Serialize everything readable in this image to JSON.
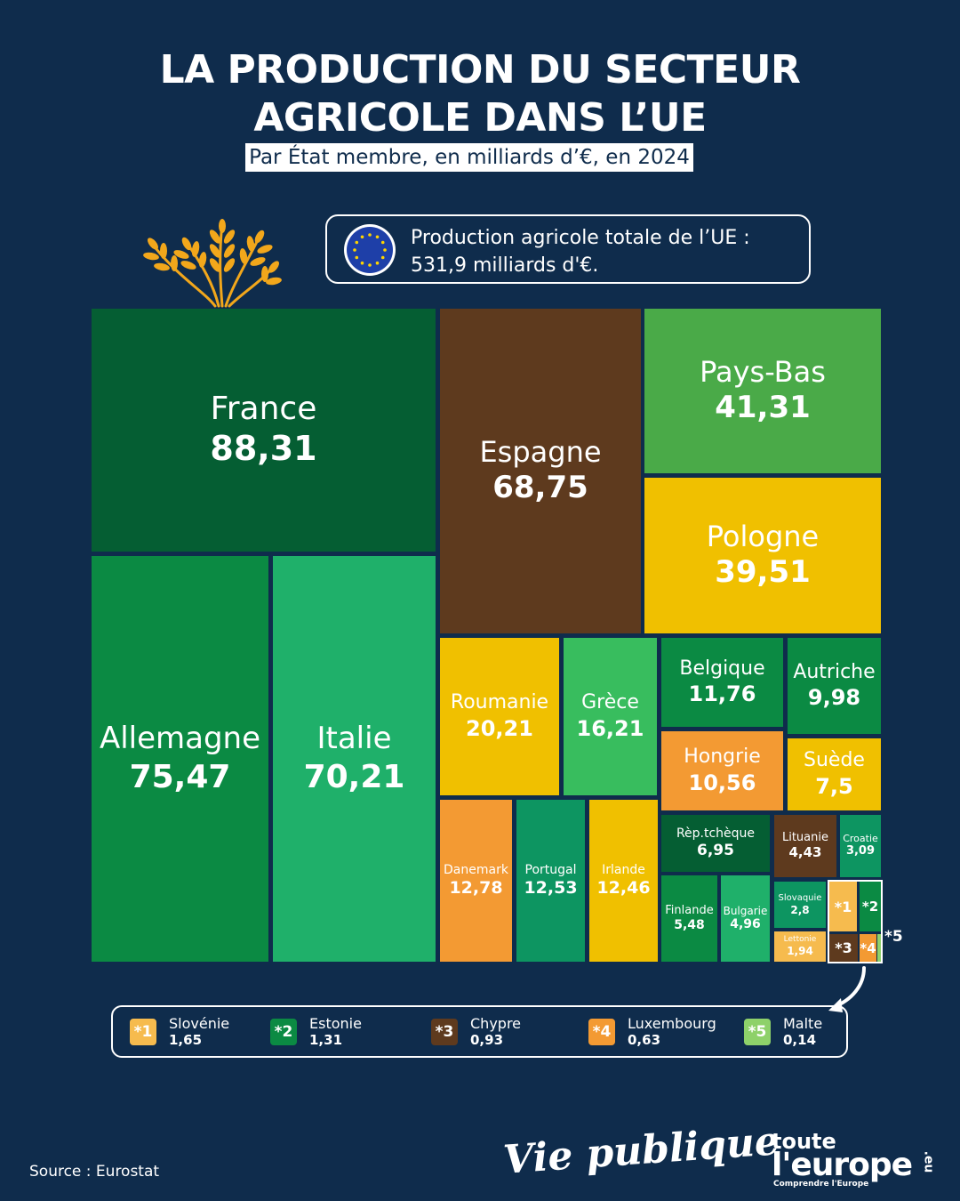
{
  "header": {
    "title_line1": "LA PRODUCTION DU SECTEUR",
    "title_line2": "AGRICOLE DANS L’UE",
    "subtitle": "Par État membre, en milliards d’€, en 2024"
  },
  "total": {
    "line1": "Production agricole totale de l’UE :",
    "line2": "531,9 milliards d'€."
  },
  "chart_data": {
    "type": "treemap",
    "title": "LA PRODUCTION DU SECTEUR AGRICOLE DANS L’UE",
    "subtitle": "Par État membre, en milliards d’€, en 2024",
    "unit": "milliards d’€",
    "year": 2024,
    "total": 531.9,
    "items": [
      {
        "name": "France",
        "label": "88,31",
        "value": 88.31,
        "color": "#055e33"
      },
      {
        "name": "Espagne",
        "label": "68,75",
        "value": 68.75,
        "color": "#5e3a1e"
      },
      {
        "name": "Pays-Bas",
        "label": "41,31",
        "value": 41.31,
        "color": "#4aaa48"
      },
      {
        "name": "Pologne",
        "label": "39,51",
        "value": 39.51,
        "color": "#f0c000"
      },
      {
        "name": "Allemagne",
        "label": "75,47",
        "value": 75.47,
        "color": "#0b8a43"
      },
      {
        "name": "Italie",
        "label": "70,21",
        "value": 70.21,
        "color": "#1fb06a"
      },
      {
        "name": "Roumanie",
        "label": "20,21",
        "value": 20.21,
        "color": "#f0c000"
      },
      {
        "name": "Grèce",
        "label": "16,21",
        "value": 16.21,
        "color": "#38bd5e"
      },
      {
        "name": "Belgique",
        "label": "11,76",
        "value": 11.76,
        "color": "#0b8a43"
      },
      {
        "name": "Autriche",
        "label": "9,98",
        "value": 9.98,
        "color": "#0b8a43"
      },
      {
        "name": "Hongrie",
        "label": "10,56",
        "value": 10.56,
        "color": "#f39a33"
      },
      {
        "name": "Suède",
        "label": "7,5",
        "value": 7.5,
        "color": "#f0c000"
      },
      {
        "name": "Danemark",
        "label": "12,78",
        "value": 12.78,
        "color": "#f39a33"
      },
      {
        "name": "Portugal",
        "label": "12,53",
        "value": 12.53,
        "color": "#0d9561"
      },
      {
        "name": "Irlande",
        "label": "12,46",
        "value": 12.46,
        "color": "#f0c000"
      },
      {
        "name": "Rèp.tchèque",
        "label": "6,95",
        "value": 6.95,
        "color": "#055e33"
      },
      {
        "name": "Lituanie",
        "label": "4,43",
        "value": 4.43,
        "color": "#5e3a1e"
      },
      {
        "name": "Croatie",
        "label": "3,09",
        "value": 3.09,
        "color": "#0d9561"
      },
      {
        "name": "Finlande",
        "label": "5,48",
        "value": 5.48,
        "color": "#0b8a43"
      },
      {
        "name": "Bulgarie",
        "label": "4,96",
        "value": 4.96,
        "color": "#1fb06a"
      },
      {
        "name": "Slovaquie",
        "label": "2,8",
        "value": 2.8,
        "color": "#0d9561"
      },
      {
        "name": "Lettonie",
        "label": "1,94",
        "value": 1.94,
        "color": "#f6bb4e"
      },
      {
        "name": "Slovénie",
        "label": "1,65",
        "value": 1.65,
        "color": "#f6bb4e",
        "marker": "*1"
      },
      {
        "name": "Estonie",
        "label": "1,31",
        "value": 1.31,
        "color": "#0b8a43",
        "marker": "*2"
      },
      {
        "name": "Chypre",
        "label": "0,93",
        "value": 0.93,
        "color": "#5e3a1e",
        "marker": "*3"
      },
      {
        "name": "Luxembourg",
        "label": "0,63",
        "value": 0.63,
        "color": "#f39a33",
        "marker": "*4"
      },
      {
        "name": "Malte",
        "label": "0,14",
        "value": 0.14,
        "color": "#8ed16a",
        "marker": "*5"
      }
    ]
  },
  "footer": {
    "source": "Source : Eurostat",
    "logo_vie_publique": "Vie publique",
    "logo_te_line1": "toute",
    "logo_te_line2": "l'europe",
    "logo_te_tagline": "Comprendre l'Europe",
    "logo_te_suffix": ".eu"
  },
  "icons": {
    "wheat": "wheat-icon",
    "eu_flag": "eu-flag-icon",
    "arrow": "curved-arrow-icon"
  }
}
